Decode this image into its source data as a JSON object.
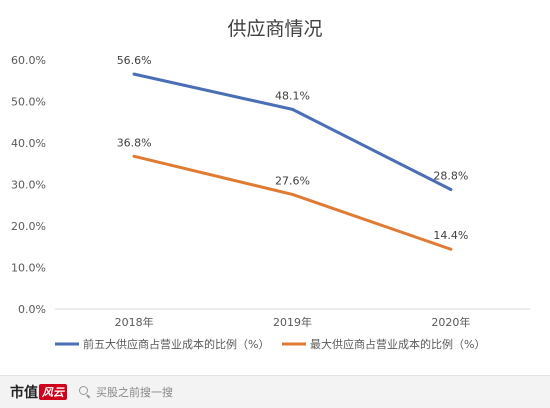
{
  "chart_data": {
    "type": "line",
    "title": "供应商情况",
    "categories": [
      "2018年",
      "2019年",
      "2020年"
    ],
    "series": [
      {
        "name": "前五大供应商占营业成本的比例（%）",
        "values": [
          56.6,
          48.1,
          28.8
        ],
        "labels": [
          "56.6%",
          "48.1%",
          "28.8%"
        ],
        "color": "#4a6fb5"
      },
      {
        "name": "最大供应商占营业成本的比例（%）",
        "values": [
          36.8,
          27.6,
          14.4
        ],
        "labels": [
          "36.8%",
          "27.6%",
          "14.4%"
        ],
        "color": "#e07b33"
      }
    ],
    "ylim": [
      0,
      60
    ],
    "yticks": [
      "0.0%",
      "10.0%",
      "20.0%",
      "30.0%",
      "40.0%",
      "50.0%",
      "60.0%"
    ],
    "grid": false,
    "legend": "bottom",
    "xlabel": "",
    "ylabel": ""
  },
  "footer": {
    "brand": "市值",
    "brand_accent": "风云",
    "search_placeholder": "买股之前搜一搜"
  }
}
